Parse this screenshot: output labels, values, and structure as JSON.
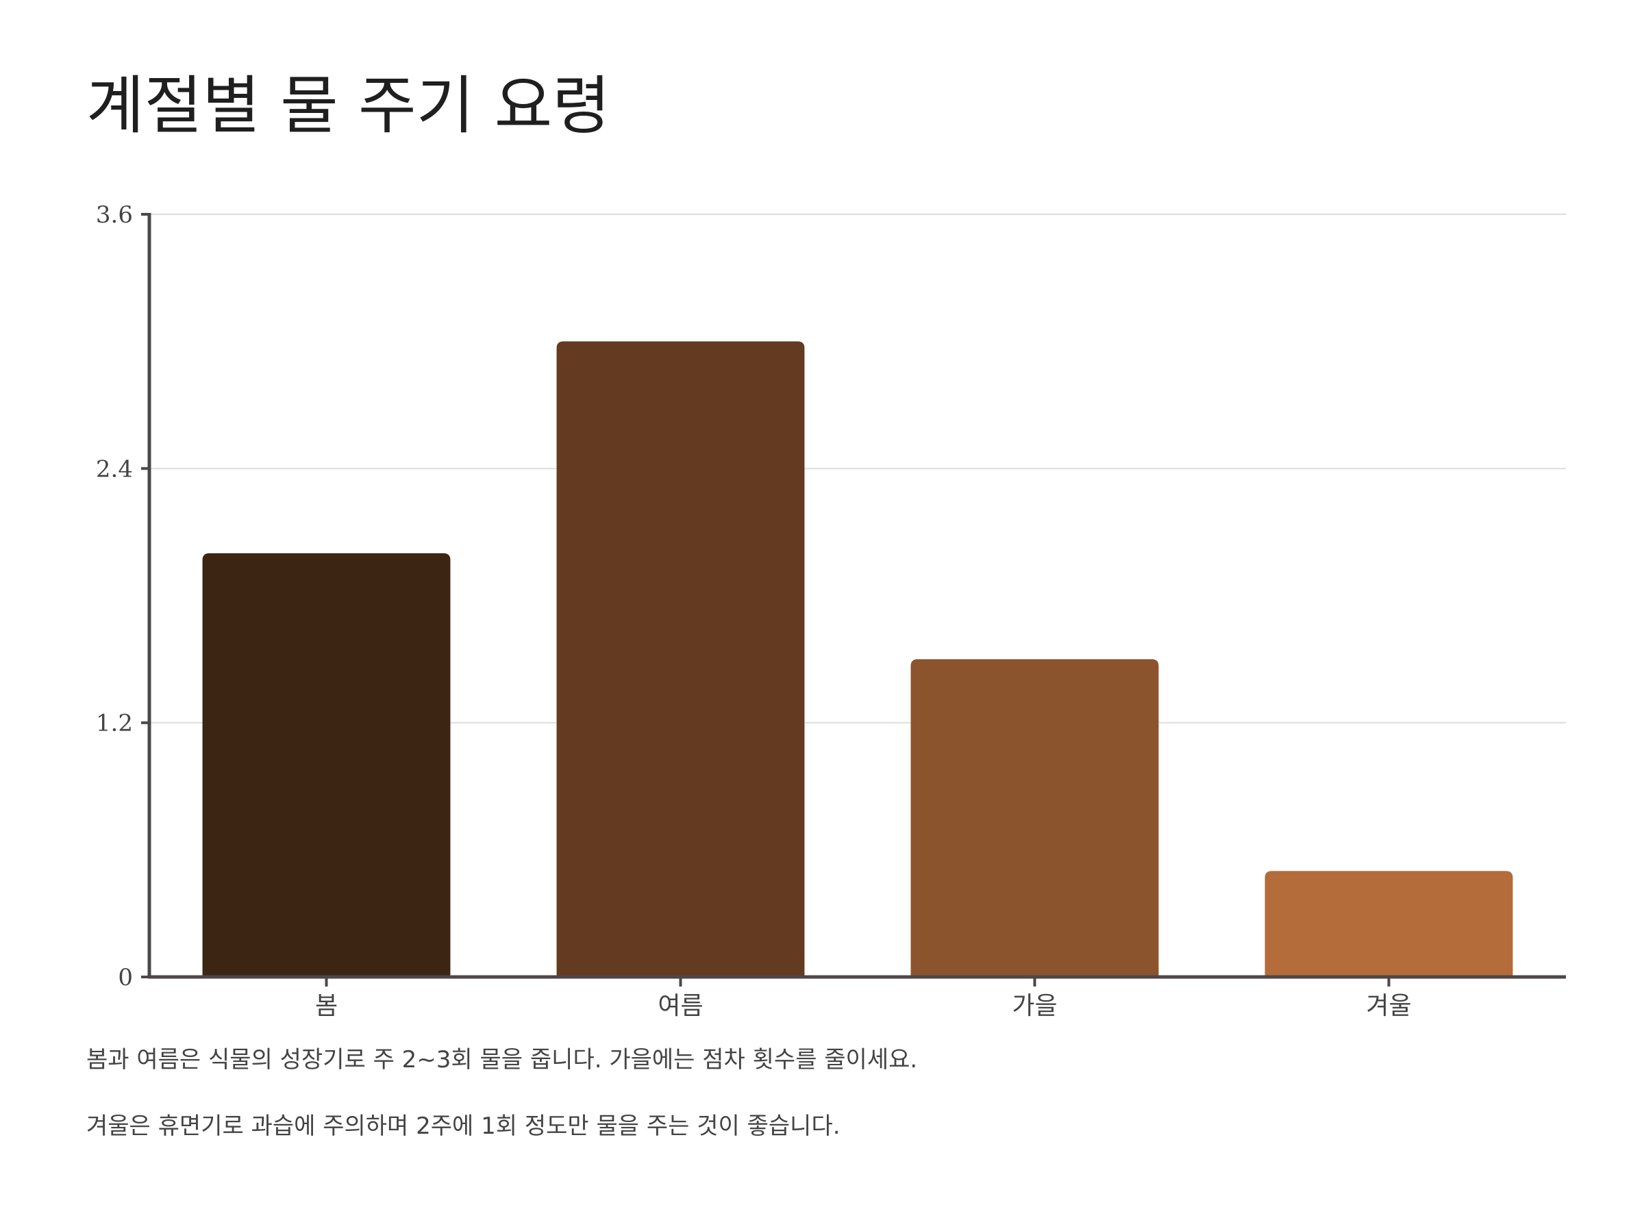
{
  "title": "계절별 물 주기 요령",
  "chart_data": {
    "type": "bar",
    "title": "계절별 물 주기 요령",
    "xlabel": "",
    "ylabel": "",
    "categories": [
      "봄",
      "여름",
      "가을",
      "겨울"
    ],
    "values": [
      2.0,
      3.0,
      1.5,
      0.5
    ],
    "colors": [
      "#3d2514",
      "#643b21",
      "#8b542d",
      "#b36c3a"
    ],
    "ylim": [
      0,
      3.6
    ],
    "yticks": [
      0,
      1.2,
      2.4,
      3.6
    ],
    "ytick_labels": [
      "0",
      "1.2",
      "2.4",
      "3.6"
    ],
    "grid": true,
    "legend": "none"
  },
  "notes": [
    "봄과 여름은 식물의 성장기로 주 2~3회 물을 줍니다. 가을에는 점차 횟수를 줄이세요.",
    "겨울은 휴면기로 과습에 주의하며 2주에 1회 정도만 물을 주는 것이 좋습니다."
  ],
  "colors": {
    "axis": "#4d4747",
    "grid": "#dddddd",
    "text": "#444444"
  }
}
